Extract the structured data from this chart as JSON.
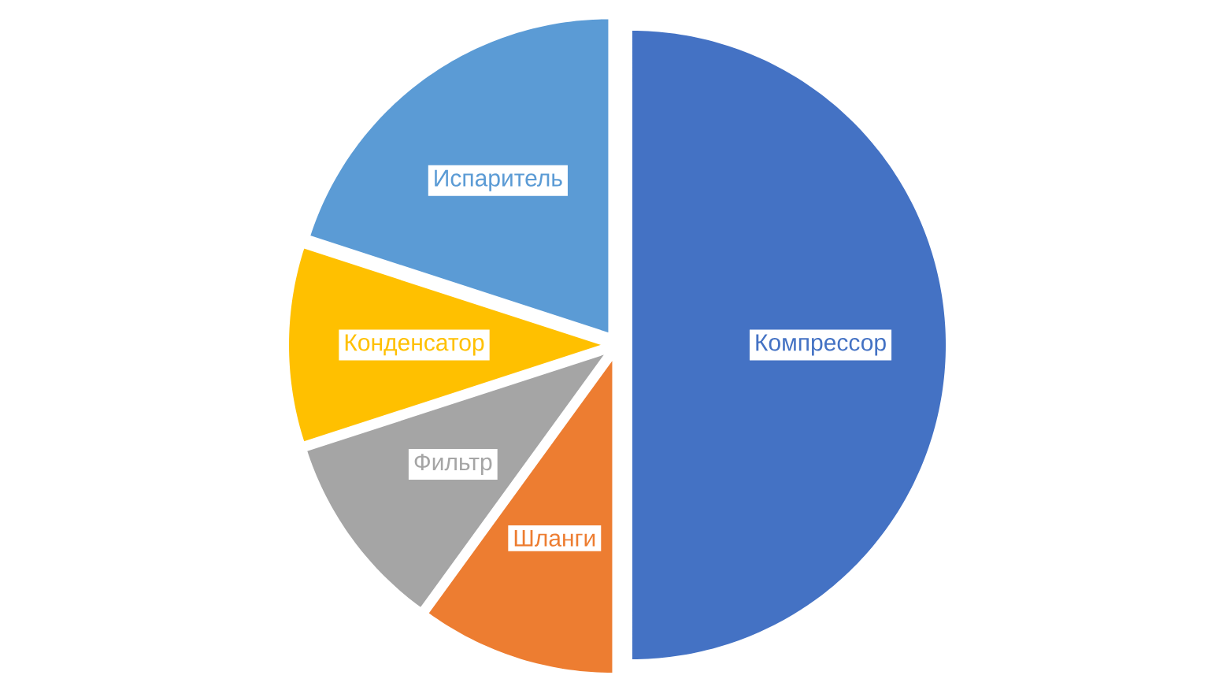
{
  "chart_data": {
    "type": "pie",
    "categories": [
      "Компрессор",
      "Шланги",
      "Фильтр",
      "Конденсатор",
      "Испаритель"
    ],
    "values": [
      50,
      10,
      10,
      10,
      20
    ],
    "colors": [
      "#4472c4",
      "#ed7d31",
      "#a5a5a5",
      "#ffc000",
      "#5b9bd5"
    ]
  }
}
